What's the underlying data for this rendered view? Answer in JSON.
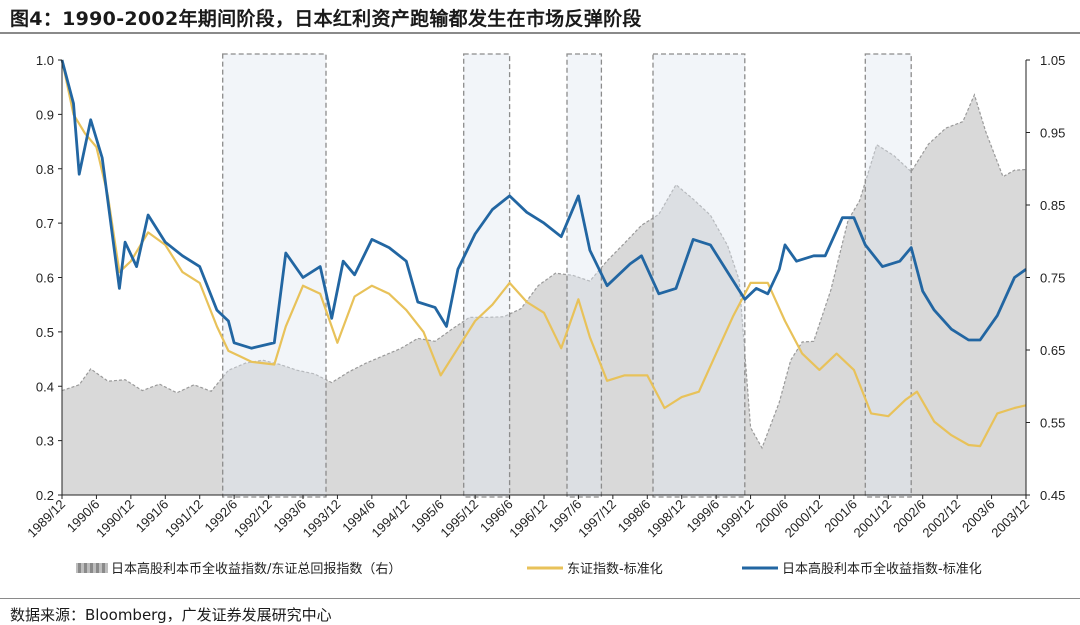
{
  "title": "图4：1990-2002年期间阶段，日本红利资产跑输都发生在市场反弹阶段",
  "source": "数据来源：Bloomberg，广发证券发展研究中心",
  "colors": {
    "area_fill": "#d9d9d9",
    "area_stroke": "#9a9a9a",
    "topix_line": "#e8c25a",
    "dividend_line": "#2266a2",
    "shade_fill": "#dfe6f1",
    "shade_border": "#8c8c8c",
    "axis": "#222222"
  },
  "chart_data": {
    "type": "line",
    "x_range": [
      "1989/12",
      "2003/12"
    ],
    "x_ticks": [
      "1989/12",
      "1990/6",
      "1990/12",
      "1991/6",
      "1991/12",
      "1992/6",
      "1992/12",
      "1993/6",
      "1993/12",
      "1994/6",
      "1994/12",
      "1995/6",
      "1995/12",
      "1996/6",
      "1996/12",
      "1997/6",
      "1997/12",
      "1998/6",
      "1998/12",
      "1999/6",
      "1999/12",
      "2000/6",
      "2000/12",
      "2001/6",
      "2001/12",
      "2002/6",
      "2002/12",
      "2003/6",
      "2003/12"
    ],
    "y_left": {
      "range": [
        0.2,
        1.0
      ],
      "ticks": [
        "1.0",
        "0.9",
        "0.8",
        "0.7",
        "0.6",
        "0.5",
        "0.4",
        "0.3",
        "0.2"
      ]
    },
    "y_right": {
      "range": [
        0.45,
        1.05
      ],
      "ticks": [
        "1.05",
        "0.95",
        "0.85",
        "0.75",
        "0.65",
        "0.55",
        "0.45"
      ]
    },
    "shaded_periods": [
      [
        "1992/4",
        "1993/10"
      ],
      [
        "1995/10",
        "1996/6"
      ],
      [
        "1997/4",
        "1997/10"
      ],
      [
        "1998/7",
        "1999/11"
      ],
      [
        "2001/8",
        "2002/4"
      ]
    ],
    "series": [
      {
        "name": "日本高股利本币全收益指数/东证总回报指数（右）",
        "kind": "area",
        "axis": "right",
        "points": [
          [
            "1989/12",
            0.594
          ],
          [
            "1990/3",
            0.602
          ],
          [
            "1990/5",
            0.624
          ],
          [
            "1990/8",
            0.607
          ],
          [
            "1990/11",
            0.609
          ],
          [
            "1991/2",
            0.594
          ],
          [
            "1991/5",
            0.603
          ],
          [
            "1991/8",
            0.591
          ],
          [
            "1991/11",
            0.602
          ],
          [
            "1992/2",
            0.593
          ],
          [
            "1992/5",
            0.622
          ],
          [
            "1992/8",
            0.632
          ],
          [
            "1992/11",
            0.636
          ],
          [
            "1993/2",
            0.63
          ],
          [
            "1993/5",
            0.622
          ],
          [
            "1993/8",
            0.617
          ],
          [
            "1993/11",
            0.605
          ],
          [
            "1994/2",
            0.62
          ],
          [
            "1994/5",
            0.632
          ],
          [
            "1994/8",
            0.642
          ],
          [
            "1994/11",
            0.652
          ],
          [
            "1995/2",
            0.666
          ],
          [
            "1995/5",
            0.662
          ],
          [
            "1995/8",
            0.679
          ],
          [
            "1995/11",
            0.695
          ],
          [
            "1996/2",
            0.695
          ],
          [
            "1996/5",
            0.696
          ],
          [
            "1996/8",
            0.707
          ],
          [
            "1996/11",
            0.739
          ],
          [
            "1997/2",
            0.756
          ],
          [
            "1997/5",
            0.753
          ],
          [
            "1997/8",
            0.745
          ],
          [
            "1997/11",
            0.773
          ],
          [
            "1998/2",
            0.797
          ],
          [
            "1998/5",
            0.822
          ],
          [
            "1998/8",
            0.837
          ],
          [
            "1998/11",
            0.878
          ],
          [
            "1999/2",
            0.858
          ],
          [
            "1999/5",
            0.836
          ],
          [
            "1999/8",
            0.794
          ],
          [
            "1999/10",
            0.747
          ],
          [
            "1999/12",
            0.543
          ],
          [
            "2000/2",
            0.515
          ],
          [
            "2000/5",
            0.578
          ],
          [
            "2000/7",
            0.636
          ],
          [
            "2000/9",
            0.661
          ],
          [
            "2000/11",
            0.662
          ],
          [
            "2001/2",
            0.733
          ],
          [
            "2001/5",
            0.829
          ],
          [
            "2001/7",
            0.856
          ],
          [
            "2001/10",
            0.933
          ],
          [
            "2002/1",
            0.918
          ],
          [
            "2002/4",
            0.896
          ],
          [
            "2002/7",
            0.934
          ],
          [
            "2002/10",
            0.956
          ],
          [
            "2003/1",
            0.965
          ],
          [
            "2003/3",
            1.002
          ],
          [
            "2003/5",
            0.951
          ],
          [
            "2003/8",
            0.889
          ],
          [
            "2003/10",
            0.898
          ],
          [
            "2003/12",
            0.899
          ]
        ]
      },
      {
        "name": "东证指数-标准化",
        "kind": "line",
        "axis": "left",
        "points": [
          [
            "1989/12",
            1.0
          ],
          [
            "1990/2",
            0.9
          ],
          [
            "1990/4",
            0.865
          ],
          [
            "1990/6",
            0.84
          ],
          [
            "1990/8",
            0.75
          ],
          [
            "1990/10",
            0.61
          ],
          [
            "1990/12",
            0.63
          ],
          [
            "1991/3",
            0.683
          ],
          [
            "1991/6",
            0.66
          ],
          [
            "1991/9",
            0.61
          ],
          [
            "1991/12",
            0.59
          ],
          [
            "1992/3",
            0.51
          ],
          [
            "1992/5",
            0.465
          ],
          [
            "1992/7",
            0.455
          ],
          [
            "1992/9",
            0.445
          ],
          [
            "1993/1",
            0.44
          ],
          [
            "1993/3",
            0.51
          ],
          [
            "1993/6",
            0.585
          ],
          [
            "1993/9",
            0.57
          ],
          [
            "1993/12",
            0.48
          ],
          [
            "1994/3",
            0.565
          ],
          [
            "1994/6",
            0.585
          ],
          [
            "1994/9",
            0.57
          ],
          [
            "1994/12",
            0.54
          ],
          [
            "1995/3",
            0.5
          ],
          [
            "1995/6",
            0.42
          ],
          [
            "1995/9",
            0.47
          ],
          [
            "1995/12",
            0.52
          ],
          [
            "1996/3",
            0.55
          ],
          [
            "1996/6",
            0.59
          ],
          [
            "1996/9",
            0.555
          ],
          [
            "1996/12",
            0.535
          ],
          [
            "1997/3",
            0.47
          ],
          [
            "1997/6",
            0.56
          ],
          [
            "1997/8",
            0.49
          ],
          [
            "1997/11",
            0.41
          ],
          [
            "1998/2",
            0.42
          ],
          [
            "1998/6",
            0.42
          ],
          [
            "1998/9",
            0.36
          ],
          [
            "1998/12",
            0.38
          ],
          [
            "1999/3",
            0.39
          ],
          [
            "1999/6",
            0.46
          ],
          [
            "1999/9",
            0.53
          ],
          [
            "1999/12",
            0.59
          ],
          [
            "2000/3",
            0.59
          ],
          [
            "2000/6",
            0.52
          ],
          [
            "2000/9",
            0.46
          ],
          [
            "2000/12",
            0.43
          ],
          [
            "2001/3",
            0.46
          ],
          [
            "2001/6",
            0.43
          ],
          [
            "2001/9",
            0.35
          ],
          [
            "2001/12",
            0.345
          ],
          [
            "2002/3",
            0.375
          ],
          [
            "2002/5",
            0.39
          ],
          [
            "2002/8",
            0.335
          ],
          [
            "2002/11",
            0.31
          ],
          [
            "2003/2",
            0.292
          ],
          [
            "2003/4",
            0.29
          ],
          [
            "2003/7",
            0.35
          ],
          [
            "2003/10",
            0.36
          ],
          [
            "2003/12",
            0.365
          ]
        ]
      },
      {
        "name": "日本高股利本币全收益指数-标准化",
        "kind": "line",
        "axis": "left",
        "points": [
          [
            "1989/12",
            1.0
          ],
          [
            "1990/2",
            0.92
          ],
          [
            "1990/3",
            0.79
          ],
          [
            "1990/5",
            0.89
          ],
          [
            "1990/7",
            0.82
          ],
          [
            "1990/10",
            0.58
          ],
          [
            "1990/11",
            0.665
          ],
          [
            "1991/1",
            0.62
          ],
          [
            "1991/3",
            0.715
          ],
          [
            "1991/6",
            0.665
          ],
          [
            "1991/9",
            0.64
          ],
          [
            "1991/12",
            0.62
          ],
          [
            "1992/3",
            0.54
          ],
          [
            "1992/5",
            0.52
          ],
          [
            "1992/6",
            0.48
          ],
          [
            "1992/9",
            0.47
          ],
          [
            "1993/1",
            0.48
          ],
          [
            "1993/3",
            0.645
          ],
          [
            "1993/6",
            0.6
          ],
          [
            "1993/9",
            0.62
          ],
          [
            "1993/11",
            0.525
          ],
          [
            "1994/1",
            0.63
          ],
          [
            "1994/3",
            0.605
          ],
          [
            "1994/6",
            0.67
          ],
          [
            "1994/9",
            0.655
          ],
          [
            "1994/12",
            0.63
          ],
          [
            "1995/2",
            0.555
          ],
          [
            "1995/5",
            0.545
          ],
          [
            "1995/7",
            0.51
          ],
          [
            "1995/9",
            0.615
          ],
          [
            "1995/12",
            0.68
          ],
          [
            "1996/3",
            0.725
          ],
          [
            "1996/6",
            0.75
          ],
          [
            "1996/9",
            0.72
          ],
          [
            "1996/12",
            0.7
          ],
          [
            "1997/3",
            0.675
          ],
          [
            "1997/6",
            0.75
          ],
          [
            "1997/8",
            0.65
          ],
          [
            "1997/11",
            0.585
          ],
          [
            "1998/3",
            0.625
          ],
          [
            "1998/5",
            0.64
          ],
          [
            "1998/8",
            0.57
          ],
          [
            "1998/11",
            0.58
          ],
          [
            "1999/2",
            0.67
          ],
          [
            "1999/5",
            0.66
          ],
          [
            "1999/8",
            0.61
          ],
          [
            "1999/11",
            0.56
          ],
          [
            "2000/1",
            0.58
          ],
          [
            "2000/3",
            0.57
          ],
          [
            "2000/5",
            0.615
          ],
          [
            "2000/6",
            0.66
          ],
          [
            "2000/8",
            0.63
          ],
          [
            "2000/11",
            0.64
          ],
          [
            "2001/1",
            0.64
          ],
          [
            "2001/4",
            0.71
          ],
          [
            "2001/6",
            0.71
          ],
          [
            "2001/8",
            0.66
          ],
          [
            "2001/11",
            0.62
          ],
          [
            "2002/2",
            0.63
          ],
          [
            "2002/4",
            0.655
          ],
          [
            "2002/6",
            0.575
          ],
          [
            "2002/8",
            0.54
          ],
          [
            "2002/11",
            0.505
          ],
          [
            "2003/2",
            0.485
          ],
          [
            "2003/4",
            0.485
          ],
          [
            "2003/7",
            0.53
          ],
          [
            "2003/10",
            0.6
          ],
          [
            "2003/12",
            0.615
          ]
        ]
      }
    ],
    "legend": {
      "placement": "bottom",
      "labels": [
        "日本高股利本币全收益指数/东证总回报指数（右）",
        "东证指数-标准化",
        "日本高股利本币全收益指数-标准化"
      ]
    }
  }
}
